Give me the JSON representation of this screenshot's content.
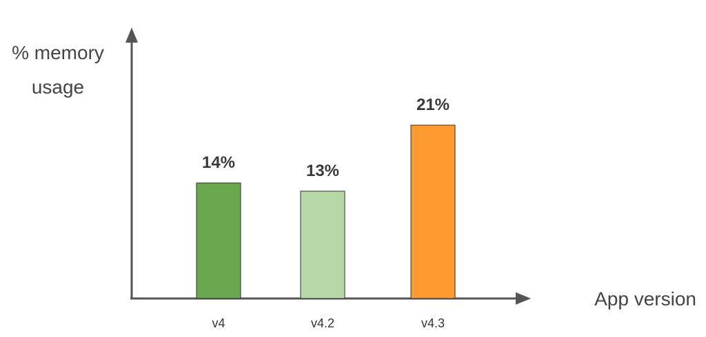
{
  "chart_data": {
    "type": "bar",
    "title": "",
    "ylabel_lines": [
      "% memory",
      "usage"
    ],
    "xlabel": "App version",
    "categories": [
      "v4",
      "v4.2",
      "v4.3"
    ],
    "values": [
      14,
      13,
      21
    ],
    "data_labels": [
      "14%",
      "13%",
      "21%"
    ],
    "colors": [
      "#6aa84f",
      "#b6d7a8",
      "#ff9a2e"
    ],
    "axis_color": "#555555",
    "ylim": [
      0,
      30
    ],
    "grid": false,
    "legend": "none"
  }
}
